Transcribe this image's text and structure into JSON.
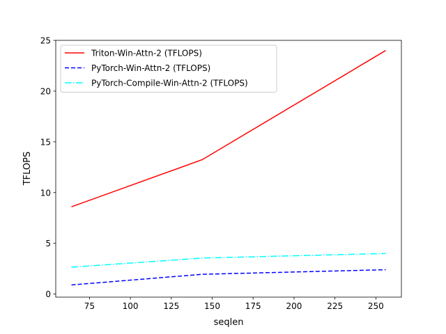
{
  "chart_data": {
    "type": "line",
    "title": "",
    "xlabel": "seqlen",
    "ylabel": "TFLOPS",
    "xlim": [
      54.4,
      265.6
    ],
    "ylim": [
      -0.3,
      25.0
    ],
    "xticks": [
      75,
      100,
      125,
      150,
      175,
      200,
      225,
      250
    ],
    "yticks": [
      0,
      5,
      10,
      15,
      20,
      25
    ],
    "grid": false,
    "legend_position": "upper-left",
    "series": [
      {
        "name": "Triton-Win-Attn-2 (TFLOPS)",
        "color": "#ff0000",
        "dash": "solid",
        "x": [
          64,
          144,
          256
        ],
        "y": [
          8.6,
          13.25,
          24.0
        ]
      },
      {
        "name": "PyTorch-Win-Attn-2 (TFLOPS)",
        "color": "#0000ff",
        "dash": "dashed",
        "x": [
          64,
          144,
          256
        ],
        "y": [
          0.9,
          1.95,
          2.4
        ]
      },
      {
        "name": "PyTorch-Compile-Win-Attn-2 (TFLOPS)",
        "color": "#00ffff",
        "dash": "dashdot",
        "x": [
          64,
          144,
          256
        ],
        "y": [
          2.65,
          3.55,
          4.0
        ]
      }
    ]
  }
}
